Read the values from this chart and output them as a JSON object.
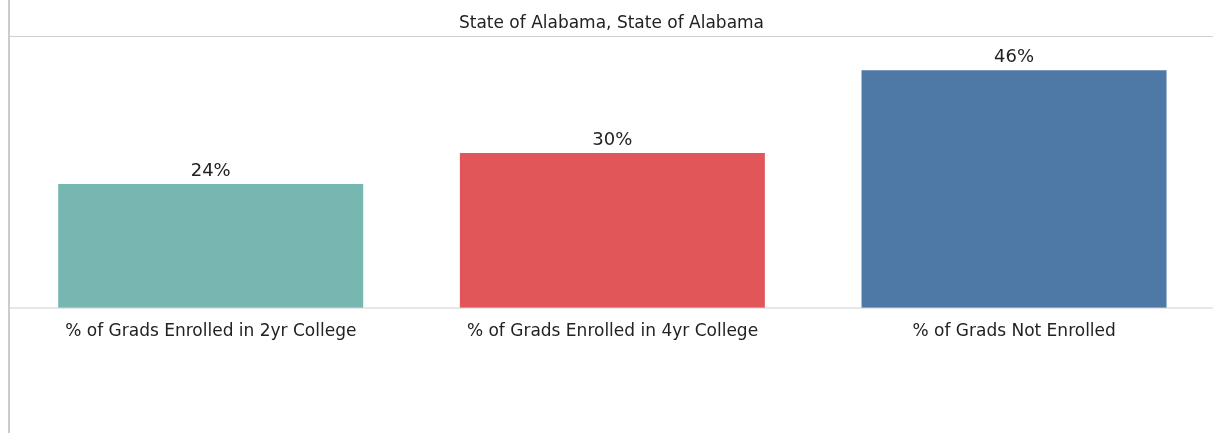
{
  "chart_data": {
    "type": "bar",
    "title": "State of Alabama, State of Alabama",
    "categories": [
      "% of Grads Enrolled in 2yr College",
      "% of Grads Enrolled in 4yr College",
      "% of Grads Not Enrolled"
    ],
    "values": [
      24,
      30,
      46
    ],
    "colors": [
      "#76b7b2",
      "#e15759",
      "#4e79a7"
    ],
    "value_labels": [
      "24%",
      "30%",
      "46%"
    ],
    "tick_labels": "x"
  }
}
